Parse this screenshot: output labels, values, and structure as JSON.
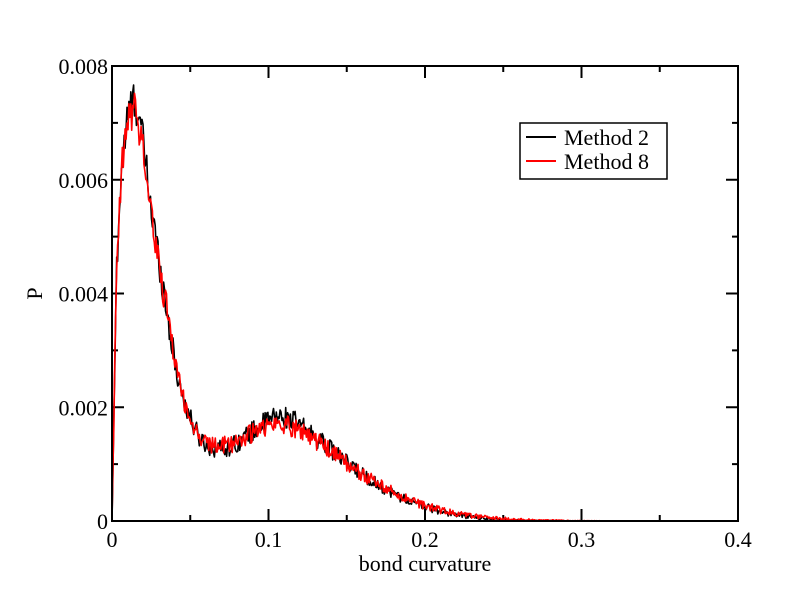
{
  "chart_data": {
    "type": "line",
    "title": "",
    "xlabel": "bond curvature",
    "ylabel": "P",
    "xlim": [
      0,
      0.4
    ],
    "ylim": [
      0,
      0.008
    ],
    "x_ticks": [
      "0",
      "0.1",
      "0.2",
      "0.3",
      "0.4"
    ],
    "y_ticks": [
      "0",
      "0.002",
      "0.004",
      "0.006",
      "0.008"
    ],
    "grid": false,
    "legend_position": "top-right",
    "series": [
      {
        "name": "Method 2",
        "color": "#000000",
        "x": [
          0.0,
          0.003,
          0.006,
          0.009,
          0.012,
          0.015,
          0.018,
          0.021,
          0.025,
          0.03,
          0.035,
          0.04,
          0.045,
          0.05,
          0.055,
          0.06,
          0.065,
          0.07,
          0.075,
          0.08,
          0.085,
          0.09,
          0.095,
          0.1,
          0.105,
          0.11,
          0.115,
          0.12,
          0.13,
          0.14,
          0.15,
          0.16,
          0.17,
          0.18,
          0.19,
          0.2,
          0.21,
          0.22,
          0.23,
          0.24,
          0.25,
          0.26,
          0.27,
          0.28,
          0.29,
          0.3,
          0.31,
          0.32
        ],
        "y": [
          0.0,
          0.0045,
          0.0062,
          0.0069,
          0.0073,
          0.0074,
          0.007,
          0.0064,
          0.0055,
          0.0046,
          0.0037,
          0.0028,
          0.0022,
          0.0018,
          0.0015,
          0.00135,
          0.00128,
          0.00128,
          0.0013,
          0.00138,
          0.00148,
          0.00158,
          0.00168,
          0.00178,
          0.00183,
          0.00182,
          0.00178,
          0.00168,
          0.00148,
          0.00125,
          0.00102,
          0.00082,
          0.00064,
          0.00048,
          0.00035,
          0.00025,
          0.00017,
          0.00011,
          7e-05,
          4e-05,
          2e-05,
          1e-05,
          5e-06,
          3e-06,
          1e-06,
          5e-07,
          2e-07,
          0.0
        ]
      },
      {
        "name": "Method 8",
        "color": "#ff0000",
        "x": [
          0.0,
          0.003,
          0.006,
          0.009,
          0.012,
          0.015,
          0.018,
          0.021,
          0.025,
          0.03,
          0.035,
          0.04,
          0.045,
          0.05,
          0.055,
          0.06,
          0.065,
          0.07,
          0.075,
          0.08,
          0.085,
          0.09,
          0.095,
          0.1,
          0.105,
          0.11,
          0.115,
          0.12,
          0.13,
          0.14,
          0.15,
          0.16,
          0.17,
          0.18,
          0.19,
          0.2,
          0.21,
          0.22,
          0.23,
          0.24,
          0.25,
          0.26,
          0.27,
          0.28,
          0.29,
          0.3,
          0.31,
          0.32
        ],
        "y": [
          0.0,
          0.0044,
          0.0061,
          0.0068,
          0.0072,
          0.0072,
          0.0069,
          0.0063,
          0.0054,
          0.0045,
          0.0037,
          0.0029,
          0.0022,
          0.0018,
          0.0015,
          0.00138,
          0.00132,
          0.00132,
          0.00135,
          0.0014,
          0.00148,
          0.00155,
          0.00162,
          0.00168,
          0.0017,
          0.0017,
          0.00166,
          0.0016,
          0.00143,
          0.00122,
          0.00101,
          0.00082,
          0.00065,
          0.0005,
          0.00037,
          0.00027,
          0.00019,
          0.00013,
          9e-05,
          6e-05,
          4e-05,
          2.5e-05,
          1.5e-05,
          1e-05,
          5e-06,
          3e-06,
          1e-06,
          0.0
        ]
      }
    ]
  }
}
